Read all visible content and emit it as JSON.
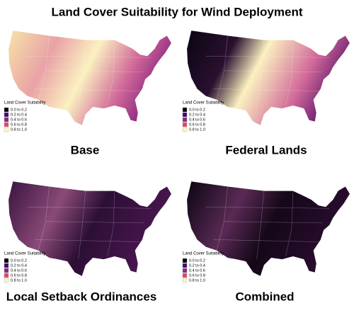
{
  "title": "Land Cover Suitability for Wind Deployment",
  "legend": {
    "title": "Land Cover Suitability",
    "items": [
      {
        "label": "0.0 to 0.2",
        "color": "#000004"
      },
      {
        "label": "0.2 to 0.4",
        "color": "#3b0f70"
      },
      {
        "label": "0.4 to 0.6",
        "color": "#8c2981"
      },
      {
        "label": "0.6 to 0.8",
        "color": "#de4968"
      },
      {
        "label": "0.8 to 1.0",
        "color": "#fcf3bf"
      }
    ]
  },
  "panels": [
    {
      "caption": "Base"
    },
    {
      "caption": "Federal Lands"
    },
    {
      "caption": "Local Setback Ordinances"
    },
    {
      "caption": "Combined"
    }
  ]
}
